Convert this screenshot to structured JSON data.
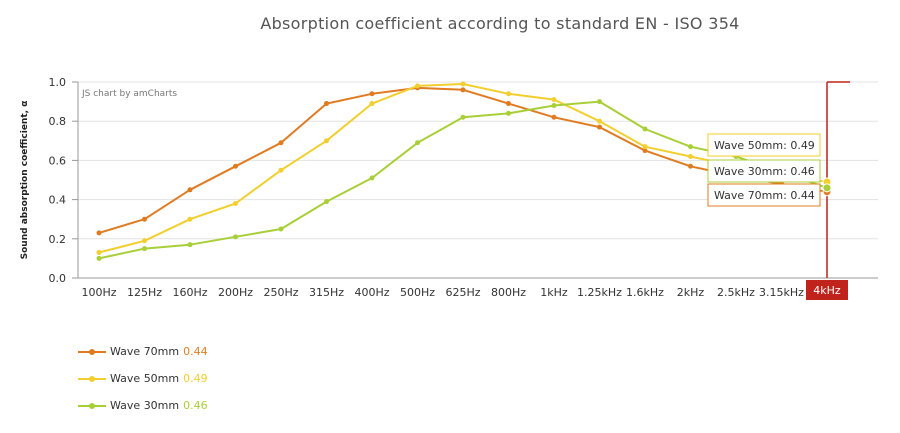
{
  "chart_data": {
    "type": "line",
    "title": "Absorption coefficient according to standard EN - ISO 354",
    "ylabel": "Sound absorption coefficient, α",
    "xlabel": "",
    "ylim": [
      0,
      1
    ],
    "y_ticks": [
      "0.0",
      "0.2",
      "0.4",
      "0.6",
      "0.8",
      "1.0"
    ],
    "categories": [
      "100Hz",
      "125Hz",
      "160Hz",
      "200Hz",
      "250Hz",
      "315Hz",
      "400Hz",
      "500Hz",
      "625Hz",
      "800Hz",
      "1kHz",
      "1.25kHz",
      "1.6kHz",
      "2kHz",
      "2.5kHz",
      "3.15kHz",
      "4kHz"
    ],
    "series": [
      {
        "name": "Wave 70mm",
        "color": "#e07b22",
        "values": [
          0.23,
          0.3,
          0.45,
          0.57,
          0.69,
          0.89,
          0.94,
          0.97,
          0.96,
          0.89,
          0.82,
          0.77,
          0.65,
          0.57,
          0.52,
          0.48,
          0.44
        ]
      },
      {
        "name": "Wave 50mm",
        "color": "#f2cf2e",
        "values": [
          0.13,
          0.19,
          0.3,
          0.38,
          0.55,
          0.7,
          0.89,
          0.98,
          0.99,
          0.94,
          0.91,
          0.8,
          0.67,
          0.62,
          0.57,
          0.53,
          0.49
        ]
      },
      {
        "name": "Wave 30mm",
        "color": "#a8cf38",
        "values": [
          0.1,
          0.15,
          0.17,
          0.21,
          0.25,
          0.39,
          0.51,
          0.69,
          0.82,
          0.84,
          0.88,
          0.9,
          0.76,
          0.67,
          0.62,
          0.54,
          0.46
        ]
      }
    ],
    "grid": true,
    "legend_position": "bottom-left",
    "cursor_category": "4kHz",
    "cursor_color": "#c0221c",
    "tooltips": [
      {
        "label": "Wave 50mm:",
        "value": "0.49"
      },
      {
        "label": "Wave 30mm:",
        "value": "0.46"
      },
      {
        "label": "Wave 70mm:",
        "value": "0.44"
      }
    ],
    "credit": "JS chart by amCharts"
  },
  "legend": [
    {
      "name": "Wave 70mm",
      "value": "0.44",
      "color": "#e07b22"
    },
    {
      "name": "Wave 50mm",
      "value": "0.49",
      "color": "#f2cf2e"
    },
    {
      "name": "Wave 30mm",
      "value": "0.46",
      "color": "#a8cf38"
    }
  ]
}
